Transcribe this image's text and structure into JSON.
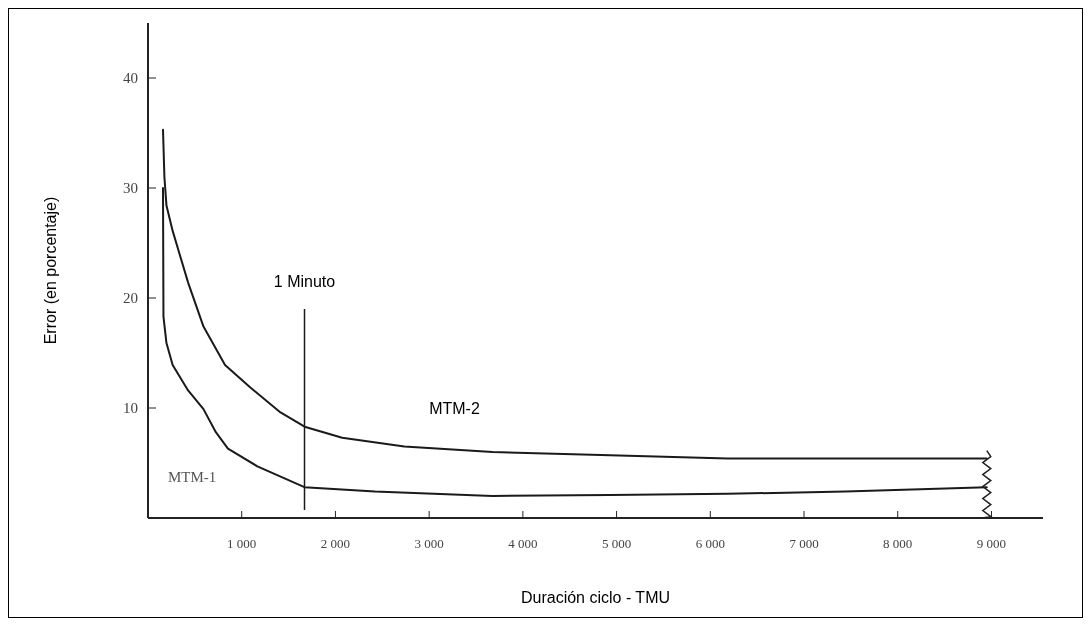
{
  "chart_data": {
    "type": "line",
    "xlabel": "Duración ciclo - TMU",
    "ylabel": "Error (en porcentaje)",
    "xlim": [
      0,
      9550
    ],
    "ylim": [
      0,
      45
    ],
    "xticks": [
      {
        "value": 1000,
        "label": "1 000"
      },
      {
        "value": 2000,
        "label": "2 000"
      },
      {
        "value": 3000,
        "label": "3 000"
      },
      {
        "value": 4000,
        "label": "4 000"
      },
      {
        "value": 5000,
        "label": "5 000"
      },
      {
        "value": 6000,
        "label": "6 000"
      },
      {
        "value": 7000,
        "label": "7 000"
      },
      {
        "value": 8000,
        "label": "8 000"
      },
      {
        "value": 9000,
        "label": "9 000"
      }
    ],
    "yticks": [
      10,
      20,
      30,
      40
    ],
    "grid": false,
    "marker": "none",
    "line_style": "solid",
    "series": [
      {
        "name": "MTM-2",
        "color": "#1a1a1a",
        "x": [
          160,
          175,
          197,
          263,
          428,
          592,
          822,
          1086,
          1414,
          1671,
          2072,
          2735,
          3676,
          4931,
          6186,
          7442,
          8950
        ],
        "values": [
          35.3,
          31,
          28.4,
          26.1,
          21.4,
          17.4,
          13.9,
          11.9,
          9.6,
          8.3,
          7.3,
          6.5,
          6,
          5.7,
          5.4,
          5.4,
          5.4
        ]
      },
      {
        "name": "MTM-1",
        "color": "#1a1a1a",
        "x": [
          160,
          165,
          197,
          263,
          428,
          592,
          724,
          853,
          1167,
          1669,
          2422,
          3676,
          4931,
          6186,
          7442,
          8950
        ],
        "values": [
          30,
          18.3,
          15.9,
          13.9,
          11.6,
          9.9,
          7.8,
          6.3,
          4.7,
          2.8,
          2.4,
          2,
          2.1,
          2.2,
          2.4,
          2.8
        ]
      }
    ],
    "ref_lines": [
      {
        "axis": "x",
        "value": 1670,
        "label": "1 Minuto",
        "color": "#1a1a1a"
      }
    ]
  }
}
